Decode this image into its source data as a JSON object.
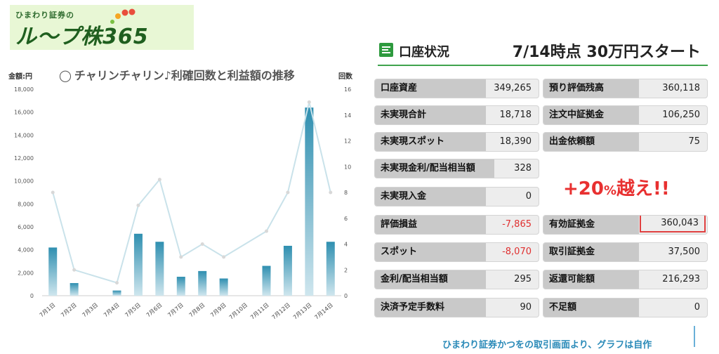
{
  "logo": {
    "small_text": "ひまわり証券の",
    "main_text": "ル〜プ株365"
  },
  "chart": {
    "title": "チャリンチャリン♪利確回数と利益額の推移",
    "left_axis_label": "金額:円",
    "right_axis_label": "回数",
    "colors": {
      "bar": "#3a9fc0",
      "line": "#c9e2ea"
    }
  },
  "chart_data": {
    "type": "bar",
    "title": "チャリンチャリン♪利確回数と利益額の推移",
    "categories": [
      "7月1日",
      "7月2日",
      "7月3日",
      "7月4日",
      "7月5日",
      "7月6日",
      "7月7日",
      "7月8日",
      "7月9日",
      "7月10日",
      "7月11日",
      "7月12日",
      "7月13日",
      "7月14日"
    ],
    "series": [
      {
        "values": [
          4200,
          1100,
          0,
          450,
          5400,
          4700,
          1650,
          2150,
          1500,
          0,
          2600,
          4350,
          16400,
          4700
        ],
        "axis": "left",
        "type": "bar"
      },
      {
        "values": [
          8,
          2,
          null,
          1,
          7,
          9,
          3,
          4,
          3,
          null,
          5,
          8,
          15,
          8
        ],
        "axis": "right",
        "type": "line"
      }
    ],
    "ylabel_left": "金額:円",
    "ylabel_right": "回数",
    "ylim_left": [
      0,
      18000
    ],
    "ylim_right": [
      0,
      16
    ],
    "yticks_left": [
      "0",
      "2,000",
      "4,000",
      "6,000",
      "8,000",
      "10,000",
      "12,000",
      "14,000",
      "16,000",
      "18,000"
    ],
    "yticks_right": [
      "0",
      "2",
      "4",
      "6",
      "8",
      "10",
      "12",
      "14",
      "16"
    ],
    "grid": false,
    "legend": "none"
  },
  "account": {
    "section_title": "口座状況",
    "headline": "7/14時点 30万円スタート",
    "left": [
      {
        "label": "口座資産",
        "value": "349,265"
      },
      {
        "label": "未実現合計",
        "value": "18,718"
      },
      {
        "label": "未実現スポット",
        "value": "18,390"
      },
      {
        "label": "未実現金利/配当相当額",
        "value": "328"
      },
      {
        "label": "未実現入金",
        "value": "0"
      },
      {
        "label": "評価損益",
        "value": "-7,865"
      },
      {
        "label": "スポット",
        "value": "-8,070"
      },
      {
        "label": "金利/配当相当額",
        "value": "295"
      },
      {
        "label": "決済予定手数料",
        "value": "90"
      }
    ],
    "right": [
      {
        "label": "預り評価残高",
        "value": "360,118"
      },
      {
        "label": "注文中証拠金",
        "value": "106,250"
      },
      {
        "label": "出金依頼額",
        "value": "75"
      },
      {
        "label": "有効証拠金",
        "value": "360,043"
      },
      {
        "label": "取引証拠金",
        "value": "37,500"
      },
      {
        "label": "返還可能額",
        "value": "216,293"
      },
      {
        "label": "不足額",
        "value": "0"
      }
    ],
    "callout_main": "+20",
    "callout_pct": "%",
    "callout_tail": "越え!!"
  },
  "footer": {
    "credit": "ひまわり証券かつをの取引画面より、グラフは自作"
  }
}
